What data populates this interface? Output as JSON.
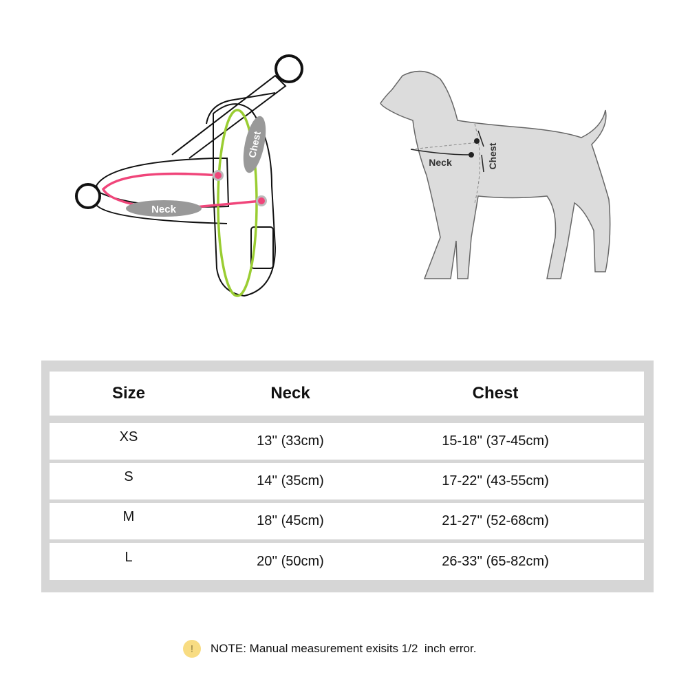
{
  "harness_diagram": {
    "neck_label": "Neck",
    "chest_label": "Chest",
    "neck_color": "#f0457a",
    "chest_color": "#9acd32"
  },
  "dog_diagram": {
    "neck_label": "Neck",
    "chest_label": "Chest"
  },
  "size_table": {
    "headers": [
      "Size",
      "Neck",
      "Chest"
    ],
    "rows": [
      [
        "XS",
        "13'' (33cm)",
        "15-18'' (37-45cm)"
      ],
      [
        "S",
        "14'' (35cm)",
        "17-22'' (43-55cm)"
      ],
      [
        "M",
        "18'' (45cm)",
        "21-27'' (52-68cm)"
      ],
      [
        "L",
        "20'' (50cm)",
        "26-33'' (65-82cm)"
      ]
    ]
  },
  "note": {
    "icon": "exclamation-icon",
    "icon_glyph": "!",
    "text": "NOTE: Manual measurement exisits 1/2  inch error."
  }
}
